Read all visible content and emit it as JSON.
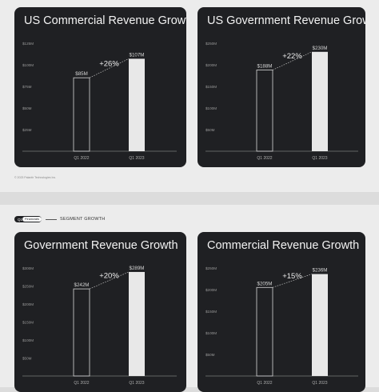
{
  "footer": {
    "copyright": "© 2023 Palantir Technologies Inc."
  },
  "section": {
    "pill_q1": "Q1",
    "pill_label": "Financials",
    "title": "SEGMENT GROWTH"
  },
  "chart_data": [
    {
      "type": "bar",
      "title": "US Commercial Revenue Growth",
      "categories": [
        "Q1 2022",
        "Q1 2023"
      ],
      "values": [
        85,
        107
      ],
      "value_labels": [
        "$85M",
        "$107M"
      ],
      "growth_label": "+26%",
      "yticks": [
        25,
        50,
        75,
        100,
        125
      ],
      "ytick_labels": [
        "$25M",
        "$50M",
        "$75M",
        "$100M",
        "$125M"
      ],
      "ylim": [
        0,
        125
      ],
      "bar_color": "#e8e8e8",
      "background": "#1f2023"
    },
    {
      "type": "bar",
      "title": "US Government Revenue Growth",
      "categories": [
        "Q1 2022",
        "Q1 2023"
      ],
      "values": [
        188,
        230
      ],
      "value_labels": [
        "$188M",
        "$230M"
      ],
      "growth_label": "+22%",
      "yticks": [
        50,
        100,
        150,
        200,
        250
      ],
      "ytick_labels": [
        "$50M",
        "$100M",
        "$150M",
        "$200M",
        "$250M"
      ],
      "ylim": [
        0,
        250
      ],
      "bar_color": "#e8e8e8",
      "background": "#1f2023"
    },
    {
      "type": "bar",
      "title": "Government Revenue Growth",
      "categories": [
        "Q1 2022",
        "Q1 2023"
      ],
      "values": [
        242,
        289
      ],
      "value_labels": [
        "$242M",
        "$289M"
      ],
      "growth_label": "+20%",
      "yticks": [
        50,
        100,
        150,
        200,
        250,
        300
      ],
      "ytick_labels": [
        "$50M",
        "$100M",
        "$150M",
        "$200M",
        "$250M",
        "$300M"
      ],
      "ylim": [
        0,
        300
      ],
      "bar_color": "#e8e8e8",
      "background": "#1f2023"
    },
    {
      "type": "bar",
      "title": "Commercial Revenue Growth",
      "categories": [
        "Q1 2022",
        "Q1 2023"
      ],
      "values": [
        205,
        236
      ],
      "value_labels": [
        "$205M",
        "$236M"
      ],
      "growth_label": "+15%",
      "yticks": [
        50,
        100,
        150,
        200,
        250
      ],
      "ytick_labels": [
        "$50M",
        "$100M",
        "$150M",
        "$200M",
        "$250M"
      ],
      "ylim": [
        0,
        250
      ],
      "bar_color": "#e8e8e8",
      "background": "#1f2023"
    }
  ]
}
